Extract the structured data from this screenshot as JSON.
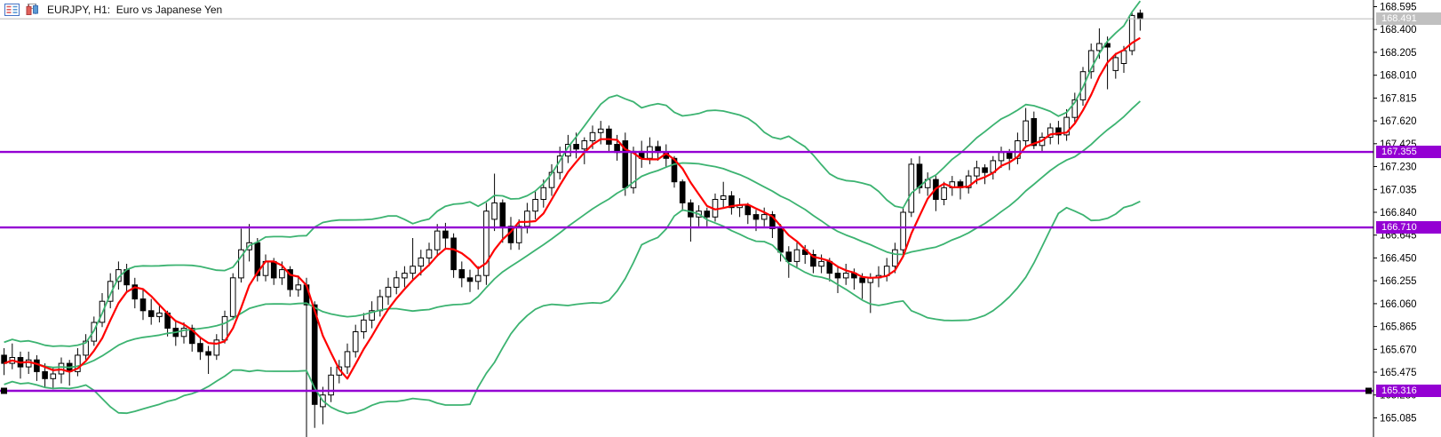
{
  "header": {
    "title": "EURJPY, H1:  Euro vs Japanese Yen",
    "icons": [
      "chart-list-icon",
      "bar-chart-icon"
    ]
  },
  "chart_data": {
    "type": "candlestick",
    "symbol": "EURJPY",
    "timeframe": "H1",
    "description": "Euro vs Japanese Yen",
    "title": "EURJPY, H1:  Euro vs Japanese Yen",
    "grid": false,
    "x_axis_visible": false,
    "y_axis": {
      "side": "right",
      "max": 168.595,
      "min": 165.085,
      "step": 0.195,
      "ticks": [
        "168.595",
        "168.400",
        "168.205",
        "168.010",
        "167.815",
        "167.620",
        "167.425",
        "167.230",
        "167.035",
        "166.840",
        "166.645",
        "166.450",
        "166.255",
        "166.060",
        "165.865",
        "165.670",
        "165.475",
        "165.280",
        "165.085"
      ]
    },
    "current_price": {
      "value": 168.491,
      "label": "168.491"
    },
    "horizontal_lines": [
      {
        "price": 167.355,
        "label": "167.355",
        "selected": false
      },
      {
        "price": 166.71,
        "label": "166.710",
        "selected": false
      },
      {
        "price": 165.316,
        "label": "165.316",
        "selected": true
      }
    ],
    "indicators": {
      "ma": {
        "type": "sma",
        "period": 5,
        "color": "#FF0000"
      },
      "bollinger": {
        "period": 20,
        "deviation": 2,
        "color": "#3CB371"
      }
    },
    "colors": {
      "background": "#FFFFFF",
      "bull": "#FFFFFF",
      "bear": "#000000",
      "outline": "#000000",
      "ma": "#FF0000",
      "bands": "#3CB371",
      "hline": "#9400D3",
      "price_line": "#C0C0C0",
      "axis_text": "#000000",
      "badge_current_bg": "#C0C0C0",
      "badge_hline_bg": "#9400D3",
      "badge_text": "#FFFFFF"
    },
    "candles": [
      [
        165.62,
        165.68,
        165.45,
        165.55
      ],
      [
        165.55,
        165.72,
        165.5,
        165.6
      ],
      [
        165.6,
        165.65,
        165.42,
        165.52
      ],
      [
        165.52,
        165.65,
        165.46,
        165.58
      ],
      [
        165.58,
        165.62,
        165.4,
        165.48
      ],
      [
        165.48,
        165.55,
        165.35,
        165.42
      ],
      [
        165.42,
        165.52,
        165.33,
        165.46
      ],
      [
        165.46,
        165.6,
        165.38,
        165.55
      ],
      [
        165.55,
        165.58,
        165.36,
        165.48
      ],
      [
        165.48,
        165.68,
        165.44,
        165.62
      ],
      [
        165.62,
        165.8,
        165.58,
        165.74
      ],
      [
        165.74,
        165.95,
        165.7,
        165.9
      ],
      [
        165.9,
        166.15,
        165.86,
        166.08
      ],
      [
        166.08,
        166.32,
        166.02,
        166.25
      ],
      [
        166.25,
        166.42,
        166.18,
        166.35
      ],
      [
        166.35,
        166.4,
        166.15,
        166.22
      ],
      [
        166.22,
        166.28,
        166.02,
        166.1
      ],
      [
        166.1,
        166.18,
        165.92,
        166.0
      ],
      [
        166.0,
        166.1,
        165.88,
        165.95
      ],
      [
        165.95,
        166.05,
        165.9,
        165.98
      ],
      [
        165.98,
        166.0,
        165.78,
        165.85
      ],
      [
        165.85,
        165.92,
        165.7,
        165.78
      ],
      [
        165.78,
        165.9,
        165.72,
        165.85
      ],
      [
        165.85,
        165.88,
        165.65,
        165.72
      ],
      [
        165.72,
        165.78,
        165.58,
        165.65
      ],
      [
        165.65,
        165.7,
        165.46,
        165.62
      ],
      [
        165.62,
        165.8,
        165.58,
        165.75
      ],
      [
        165.75,
        166.0,
        165.72,
        165.95
      ],
      [
        165.95,
        166.32,
        165.92,
        166.28
      ],
      [
        166.28,
        166.7,
        166.24,
        166.52
      ],
      [
        166.52,
        166.74,
        166.42,
        166.58
      ],
      [
        166.58,
        166.62,
        166.25,
        166.3
      ],
      [
        166.3,
        166.48,
        166.25,
        166.42
      ],
      [
        166.42,
        166.45,
        166.22,
        166.28
      ],
      [
        166.28,
        166.42,
        166.22,
        166.35
      ],
      [
        166.35,
        166.38,
        166.12,
        166.18
      ],
      [
        166.18,
        166.3,
        166.12,
        166.22
      ],
      [
        166.22,
        166.28,
        164.89,
        166.05
      ],
      [
        166.05,
        166.08,
        165.0,
        165.2
      ],
      [
        165.18,
        165.35,
        165.03,
        165.28
      ],
      [
        165.28,
        165.52,
        165.22,
        165.45
      ],
      [
        165.45,
        165.58,
        165.38,
        165.52
      ],
      [
        165.52,
        165.72,
        165.46,
        165.65
      ],
      [
        165.65,
        165.88,
        165.6,
        165.82
      ],
      [
        165.82,
        165.98,
        165.76,
        165.92
      ],
      [
        165.92,
        166.08,
        165.85,
        166.0
      ],
      [
        166.0,
        166.18,
        165.95,
        166.12
      ],
      [
        166.12,
        166.28,
        166.05,
        166.2
      ],
      [
        166.2,
        166.34,
        166.14,
        166.28
      ],
      [
        166.28,
        166.38,
        166.2,
        166.32
      ],
      [
        166.32,
        166.62,
        166.26,
        166.38
      ],
      [
        166.38,
        166.52,
        166.3,
        166.45
      ],
      [
        166.45,
        166.58,
        166.38,
        166.52
      ],
      [
        166.52,
        166.74,
        166.46,
        166.68
      ],
      [
        166.68,
        166.75,
        166.52,
        166.62
      ],
      [
        166.62,
        166.66,
        166.28,
        166.35
      ],
      [
        166.35,
        166.42,
        166.2,
        166.28
      ],
      [
        166.28,
        166.35,
        166.16,
        166.25
      ],
      [
        166.25,
        166.38,
        166.18,
        166.3
      ],
      [
        166.3,
        166.92,
        166.22,
        166.85
      ],
      [
        166.78,
        167.17,
        166.68,
        166.92
      ],
      [
        166.92,
        166.95,
        166.58,
        166.72
      ],
      [
        166.72,
        166.8,
        166.52,
        166.58
      ],
      [
        166.58,
        166.78,
        166.52,
        166.72
      ],
      [
        166.72,
        166.92,
        166.66,
        166.85
      ],
      [
        166.85,
        167.02,
        166.78,
        166.95
      ],
      [
        166.95,
        167.12,
        166.88,
        167.05
      ],
      [
        167.05,
        167.25,
        166.98,
        167.18
      ],
      [
        167.18,
        167.4,
        167.12,
        167.32
      ],
      [
        167.32,
        167.5,
        167.26,
        167.42
      ],
      [
        167.42,
        167.52,
        167.3,
        167.38
      ],
      [
        167.38,
        167.48,
        167.25,
        167.45
      ],
      [
        167.45,
        167.58,
        167.38,
        167.52
      ],
      [
        167.52,
        167.62,
        167.42,
        167.55
      ],
      [
        167.55,
        167.58,
        167.35,
        167.42
      ],
      [
        167.42,
        167.5,
        167.28,
        167.35
      ],
      [
        167.45,
        167.52,
        166.98,
        167.05
      ],
      [
        167.05,
        167.4,
        167.0,
        167.36
      ],
      [
        167.36,
        167.45,
        167.22,
        167.3
      ],
      [
        167.3,
        167.48,
        167.25,
        167.4
      ],
      [
        167.4,
        167.45,
        167.28,
        167.35
      ],
      [
        167.35,
        167.42,
        167.22,
        167.3
      ],
      [
        167.3,
        167.32,
        167.05,
        167.1
      ],
      [
        167.1,
        167.12,
        166.85,
        166.92
      ],
      [
        166.92,
        166.95,
        166.59,
        166.8
      ],
      [
        166.8,
        166.9,
        166.72,
        166.85
      ],
      [
        166.85,
        166.88,
        166.72,
        166.8
      ],
      [
        166.8,
        167.0,
        166.76,
        166.95
      ],
      [
        166.95,
        167.1,
        166.88,
        166.98
      ],
      [
        166.98,
        167.02,
        166.82,
        166.88
      ],
      [
        166.88,
        166.96,
        166.8,
        166.9
      ],
      [
        166.9,
        166.92,
        166.74,
        166.82
      ],
      [
        166.82,
        166.86,
        166.68,
        166.78
      ],
      [
        166.78,
        166.88,
        166.72,
        166.82
      ],
      [
        166.82,
        166.85,
        166.62,
        166.7
      ],
      [
        166.7,
        166.74,
        166.42,
        166.5
      ],
      [
        166.5,
        166.55,
        166.28,
        166.42
      ],
      [
        166.42,
        166.58,
        166.36,
        166.52
      ],
      [
        166.52,
        166.56,
        166.4,
        166.48
      ],
      [
        166.48,
        166.52,
        166.32,
        166.38
      ],
      [
        166.38,
        166.48,
        166.32,
        166.42
      ],
      [
        166.42,
        166.45,
        166.25,
        166.32
      ],
      [
        166.32,
        166.38,
        166.15,
        166.28
      ],
      [
        166.28,
        166.4,
        166.22,
        166.32
      ],
      [
        166.32,
        166.36,
        166.18,
        166.28
      ],
      [
        166.28,
        166.32,
        166.1,
        166.24
      ],
      [
        166.24,
        166.32,
        165.98,
        166.28
      ],
      [
        166.28,
        166.38,
        166.2,
        166.3
      ],
      [
        166.3,
        166.45,
        166.25,
        166.38
      ],
      [
        166.38,
        166.58,
        166.32,
        166.52
      ],
      [
        166.52,
        166.88,
        166.48,
        166.84
      ],
      [
        166.84,
        167.3,
        166.8,
        167.25
      ],
      [
        167.25,
        167.32,
        167.0,
        167.05
      ],
      [
        167.05,
        167.18,
        166.98,
        167.12
      ],
      [
        167.12,
        167.15,
        166.85,
        166.95
      ],
      [
        166.95,
        167.1,
        166.9,
        167.05
      ],
      [
        167.05,
        167.15,
        166.98,
        167.1
      ],
      [
        167.1,
        167.12,
        166.95,
        167.05
      ],
      [
        167.05,
        167.2,
        167.0,
        167.15
      ],
      [
        167.15,
        167.28,
        167.08,
        167.22
      ],
      [
        167.22,
        167.25,
        167.08,
        167.18
      ],
      [
        167.18,
        167.32,
        167.12,
        167.28
      ],
      [
        167.28,
        167.4,
        167.22,
        167.35
      ],
      [
        167.35,
        167.38,
        167.2,
        167.3
      ],
      [
        167.3,
        167.52,
        167.25,
        167.45
      ],
      [
        167.45,
        167.73,
        167.4,
        167.62
      ],
      [
        167.64,
        167.7,
        167.38,
        167.41
      ],
      [
        167.41,
        167.52,
        167.35,
        167.48
      ],
      [
        167.48,
        167.6,
        167.42,
        167.56
      ],
      [
        167.56,
        167.62,
        167.42,
        167.5
      ],
      [
        167.5,
        167.72,
        167.45,
        167.65
      ],
      [
        167.65,
        167.86,
        167.6,
        167.8
      ],
      [
        167.8,
        168.08,
        167.75,
        168.04
      ],
      [
        168.04,
        168.28,
        167.98,
        168.22
      ],
      [
        168.22,
        168.41,
        168.15,
        168.28
      ],
      [
        168.28,
        168.34,
        167.89,
        168.25
      ],
      [
        168.05,
        168.2,
        167.98,
        168.16
      ],
      [
        168.11,
        168.26,
        168.03,
        168.22
      ],
      [
        168.22,
        168.55,
        168.18,
        168.52
      ],
      [
        168.54,
        168.57,
        168.39,
        168.491
      ]
    ]
  }
}
